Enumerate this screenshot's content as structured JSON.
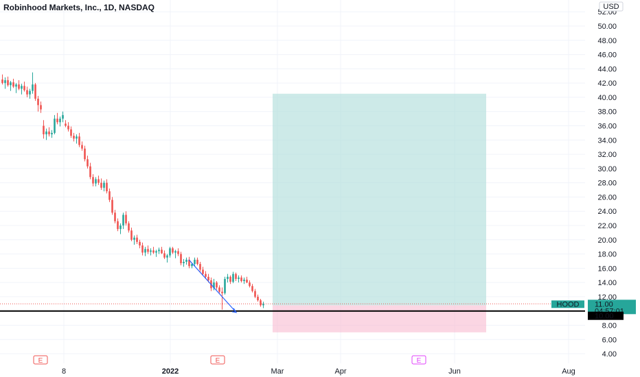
{
  "header": {
    "title": "Robinhood Markets, Inc., 1D, NASDAQ"
  },
  "colors": {
    "up": "#26a69a",
    "down": "#ef5350",
    "profit_zone": "#b2dfdb",
    "loss_zone": "#f8bbd0",
    "grid": "#f0f3fa",
    "trend_line": "#2962ff"
  },
  "chart_data": {
    "type": "candlestick",
    "title": "Robinhood Markets, Inc., 1D, NASDAQ",
    "currency": "USD",
    "y_range": [
      3.5,
      53
    ],
    "y_ticks": [
      4,
      6,
      8,
      10,
      12,
      14,
      16,
      18,
      20,
      22,
      24,
      26,
      28,
      30,
      32,
      34,
      36,
      38,
      40,
      42,
      44,
      46,
      48,
      50,
      52
    ],
    "y_tick_labels": [
      "4.00",
      "6.00",
      "8.00",
      "10.00",
      "12.00",
      "14.00",
      "16.00",
      "18.00",
      "20.00",
      "22.00",
      "24.00",
      "26.00",
      "28.00",
      "30.00",
      "32.00",
      "34.00",
      "36.00",
      "38.00",
      "40.00",
      "42.00",
      "44.00",
      "46.00",
      "48.00",
      "50.00",
      "52.00"
    ],
    "x_labels": [
      "8",
      "2022",
      "Mar",
      "Apr",
      "Jun",
      "Aug"
    ],
    "candles": [
      [
        42.5,
        43.2,
        41.8,
        42.0
      ],
      [
        42.0,
        42.8,
        41.2,
        42.4
      ],
      [
        42.4,
        42.9,
        41.5,
        41.7
      ],
      [
        41.7,
        42.3,
        40.9,
        42.1
      ],
      [
        42.1,
        42.6,
        41.3,
        41.5
      ],
      [
        41.5,
        42.0,
        40.6,
        41.8
      ],
      [
        41.8,
        42.4,
        41.0,
        41.2
      ],
      [
        41.2,
        41.9,
        40.4,
        41.6
      ],
      [
        41.6,
        42.2,
        40.8,
        41.0
      ],
      [
        41.0,
        41.5,
        40.0,
        40.4
      ],
      [
        40.4,
        41.2,
        39.8,
        40.9
      ],
      [
        40.9,
        43.5,
        40.5,
        41.8
      ],
      [
        41.8,
        42.0,
        39.5,
        39.8
      ],
      [
        39.8,
        40.2,
        38.0,
        38.9
      ],
      [
        38.9,
        39.4,
        37.8,
        38.3
      ],
      [
        36.0,
        36.8,
        34.2,
        34.8
      ],
      [
        34.8,
        35.6,
        34.0,
        35.2
      ],
      [
        35.2,
        35.8,
        34.5,
        34.8
      ],
      [
        34.8,
        35.4,
        34.3,
        35.0
      ],
      [
        35.0,
        37.5,
        34.8,
        37.0
      ],
      [
        37.0,
        37.8,
        36.2,
        36.5
      ],
      [
        36.5,
        37.3,
        35.9,
        37.0
      ],
      [
        37.0,
        38.0,
        36.5,
        37.5
      ],
      [
        36.3,
        36.8,
        35.8,
        36.0
      ],
      [
        36.0,
        36.5,
        35.2,
        35.5
      ],
      [
        35.5,
        35.9,
        34.3,
        34.6
      ],
      [
        34.6,
        35.0,
        33.8,
        34.2
      ],
      [
        34.2,
        34.8,
        33.5,
        34.5
      ],
      [
        34.5,
        35.0,
        33.0,
        33.3
      ],
      [
        33.3,
        33.8,
        32.5,
        32.8
      ],
      [
        32.8,
        33.2,
        31.0,
        31.3
      ],
      [
        31.3,
        31.8,
        30.0,
        30.3
      ],
      [
        30.3,
        30.8,
        28.5,
        28.8
      ],
      [
        28.8,
        29.2,
        27.5,
        27.9
      ],
      [
        27.9,
        28.8,
        27.5,
        28.5
      ],
      [
        28.5,
        29.0,
        27.7,
        28.0
      ],
      [
        28.0,
        28.6,
        27.0,
        27.3
      ],
      [
        27.3,
        28.3,
        26.8,
        28.0
      ],
      [
        28.0,
        28.5,
        26.5,
        26.8
      ],
      [
        26.8,
        27.2,
        25.3,
        25.6
      ],
      [
        25.6,
        26.0,
        23.5,
        23.8
      ],
      [
        23.8,
        24.2,
        22.3,
        22.6
      ],
      [
        22.6,
        23.0,
        21.2,
        21.5
      ],
      [
        21.5,
        22.3,
        20.8,
        22.0
      ],
      [
        22.0,
        23.8,
        21.5,
        23.5
      ],
      [
        23.5,
        24.0,
        22.0,
        22.3
      ],
      [
        22.3,
        22.6,
        21.0,
        21.3
      ],
      [
        21.3,
        21.7,
        19.8,
        20.0
      ],
      [
        20.0,
        20.6,
        19.3,
        20.3
      ],
      [
        20.3,
        20.7,
        19.4,
        19.7
      ],
      [
        19.7,
        20.0,
        18.8,
        19.2
      ],
      [
        19.2,
        19.6,
        17.8,
        18.2
      ],
      [
        18.2,
        19.0,
        17.7,
        18.7
      ],
      [
        18.7,
        19.2,
        18.0,
        18.3
      ],
      [
        18.3,
        18.8,
        17.8,
        18.5
      ],
      [
        18.5,
        19.0,
        18.0,
        18.2
      ],
      [
        18.2,
        18.6,
        17.6,
        18.4
      ],
      [
        18.4,
        18.9,
        18.0,
        18.6
      ],
      [
        18.6,
        19.0,
        18.0,
        18.1
      ],
      [
        18.1,
        18.5,
        17.3,
        17.5
      ],
      [
        17.5,
        18.0,
        16.8,
        17.8
      ],
      [
        17.8,
        19.0,
        17.5,
        18.8
      ],
      [
        18.8,
        19.0,
        18.0,
        18.2
      ],
      [
        18.2,
        18.6,
        17.4,
        18.4
      ],
      [
        18.4,
        18.8,
        17.7,
        18.0
      ],
      [
        18.0,
        18.3,
        16.4,
        16.7
      ],
      [
        16.7,
        17.3,
        16.2,
        16.9
      ],
      [
        16.9,
        17.5,
        16.5,
        17.2
      ],
      [
        17.2,
        17.6,
        16.0,
        16.3
      ],
      [
        16.3,
        16.8,
        16.0,
        16.6
      ],
      [
        16.6,
        17.5,
        16.3,
        17.2
      ],
      [
        17.2,
        17.5,
        16.4,
        16.6
      ],
      [
        16.6,
        16.9,
        15.5,
        15.8
      ],
      [
        15.8,
        16.2,
        15.0,
        15.2
      ],
      [
        15.2,
        15.6,
        14.5,
        14.8
      ],
      [
        14.8,
        15.2,
        14.0,
        14.3
      ],
      [
        14.3,
        14.7,
        12.8,
        13.2
      ],
      [
        13.2,
        14.5,
        12.9,
        14.0
      ],
      [
        14.0,
        14.2,
        13.0,
        13.3
      ],
      [
        13.3,
        13.6,
        12.5,
        12.7
      ],
      [
        12.7,
        13.3,
        10.2,
        12.5
      ],
      [
        12.5,
        14.8,
        12.3,
        14.5
      ],
      [
        14.5,
        15.2,
        14.0,
        14.8
      ],
      [
        14.8,
        15.0,
        13.8,
        14.1
      ],
      [
        14.1,
        15.5,
        13.9,
        15.2
      ],
      [
        15.2,
        15.4,
        14.2,
        14.5
      ],
      [
        14.5,
        15.0,
        14.0,
        14.7
      ],
      [
        14.7,
        15.0,
        14.0,
        14.2
      ],
      [
        14.2,
        14.7,
        13.8,
        14.4
      ],
      [
        14.4,
        14.8,
        13.9,
        14.0
      ],
      [
        14.0,
        14.3,
        13.3,
        13.5
      ],
      [
        13.5,
        13.8,
        12.6,
        12.8
      ],
      [
        12.8,
        13.1,
        11.8,
        12.0
      ],
      [
        12.0,
        12.3,
        11.3,
        11.5
      ],
      [
        11.5,
        11.7,
        10.6,
        10.8
      ],
      [
        10.8,
        11.3,
        10.4,
        11.0
      ]
    ],
    "position": {
      "type": "long",
      "entry": 10.8,
      "target": 40.5,
      "stop": 7.0
    },
    "support_level": 10.0,
    "trend_line": {
      "from_price": 17.2,
      "to_price": 9.8
    },
    "earnings_markers": [
      "E",
      "E",
      "E"
    ],
    "price_labels": {
      "symbol": "HOOD",
      "last_price": "11.00",
      "countdown": "04:57:01",
      "level": "10.00"
    }
  }
}
